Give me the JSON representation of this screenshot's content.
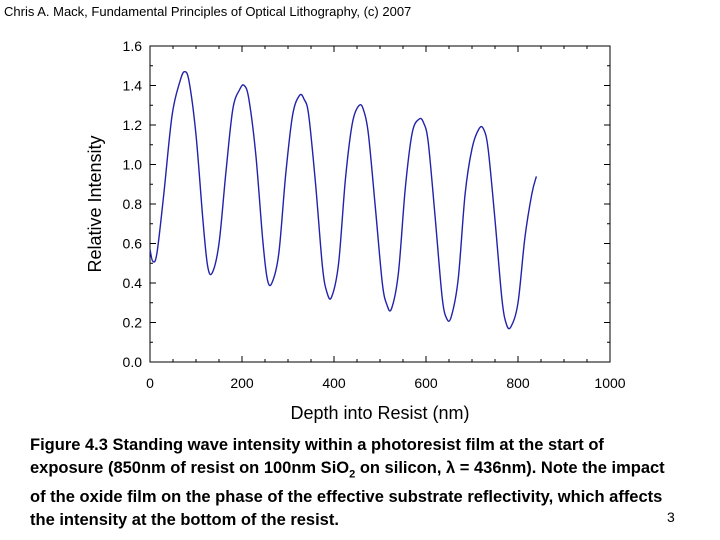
{
  "header": {
    "text": "Chris A. Mack, Fundamental Principles of Optical Lithography, (c) 2007"
  },
  "chart_data": {
    "type": "line",
    "title": "",
    "xlabel": "Depth into Resist (nm)",
    "ylabel": "Relative Intensity",
    "xlim": [
      0,
      1000
    ],
    "ylim": [
      0,
      1.6
    ],
    "grid": false,
    "x_ticks": [
      "0",
      "200",
      "400",
      "600",
      "800",
      "1000"
    ],
    "y_ticks": [
      "0.0",
      "0.2",
      "0.4",
      "0.6",
      "0.8",
      "1.0",
      "1.2",
      "1.4",
      "1.6"
    ],
    "series": [
      {
        "name": "Relative Intensity",
        "color": "#2222aa",
        "x": [
          0,
          6,
          15,
          30,
          48,
          65,
          75,
          85,
          100,
          115,
          125,
          135,
          150,
          165,
          180,
          195,
          205,
          215,
          230,
          245,
          255,
          265,
          280,
          295,
          310,
          325,
          335,
          345,
          360,
          375,
          385,
          395,
          410,
          425,
          440,
          455,
          465,
          475,
          490,
          505,
          515,
          525,
          540,
          555,
          570,
          585,
          595,
          605,
          620,
          635,
          645,
          655,
          670,
          685,
          700,
          715,
          725,
          735,
          750,
          765,
          775,
          785,
          800,
          815,
          830,
          840
        ],
        "y": [
          0.57,
          0.51,
          0.55,
          0.85,
          1.25,
          1.42,
          1.47,
          1.42,
          1.15,
          0.72,
          0.49,
          0.45,
          0.6,
          0.96,
          1.28,
          1.38,
          1.4,
          1.33,
          1.05,
          0.62,
          0.42,
          0.4,
          0.55,
          0.95,
          1.25,
          1.35,
          1.33,
          1.25,
          0.9,
          0.48,
          0.35,
          0.33,
          0.5,
          0.93,
          1.21,
          1.3,
          1.27,
          1.15,
          0.78,
          0.4,
          0.29,
          0.27,
          0.45,
          0.88,
          1.16,
          1.23,
          1.21,
          1.11,
          0.73,
          0.33,
          0.22,
          0.23,
          0.42,
          0.85,
          1.08,
          1.18,
          1.18,
          1.08,
          0.72,
          0.32,
          0.19,
          0.18,
          0.3,
          0.63,
          0.85,
          0.94
        ]
      }
    ]
  },
  "caption": {
    "text_before_sub": "Figure 4.3  Standing wave intensity within a photoresist film at the start of exposure (850nm of resist on 100nm SiO",
    "subscript": "2",
    "text_after_sub": " on silicon, λ = 436nm).  Note the impact of the oxide film on the phase of the effective substrate reflectivity, which affects the intensity at the bottom of the resist."
  },
  "slide_number": "3"
}
